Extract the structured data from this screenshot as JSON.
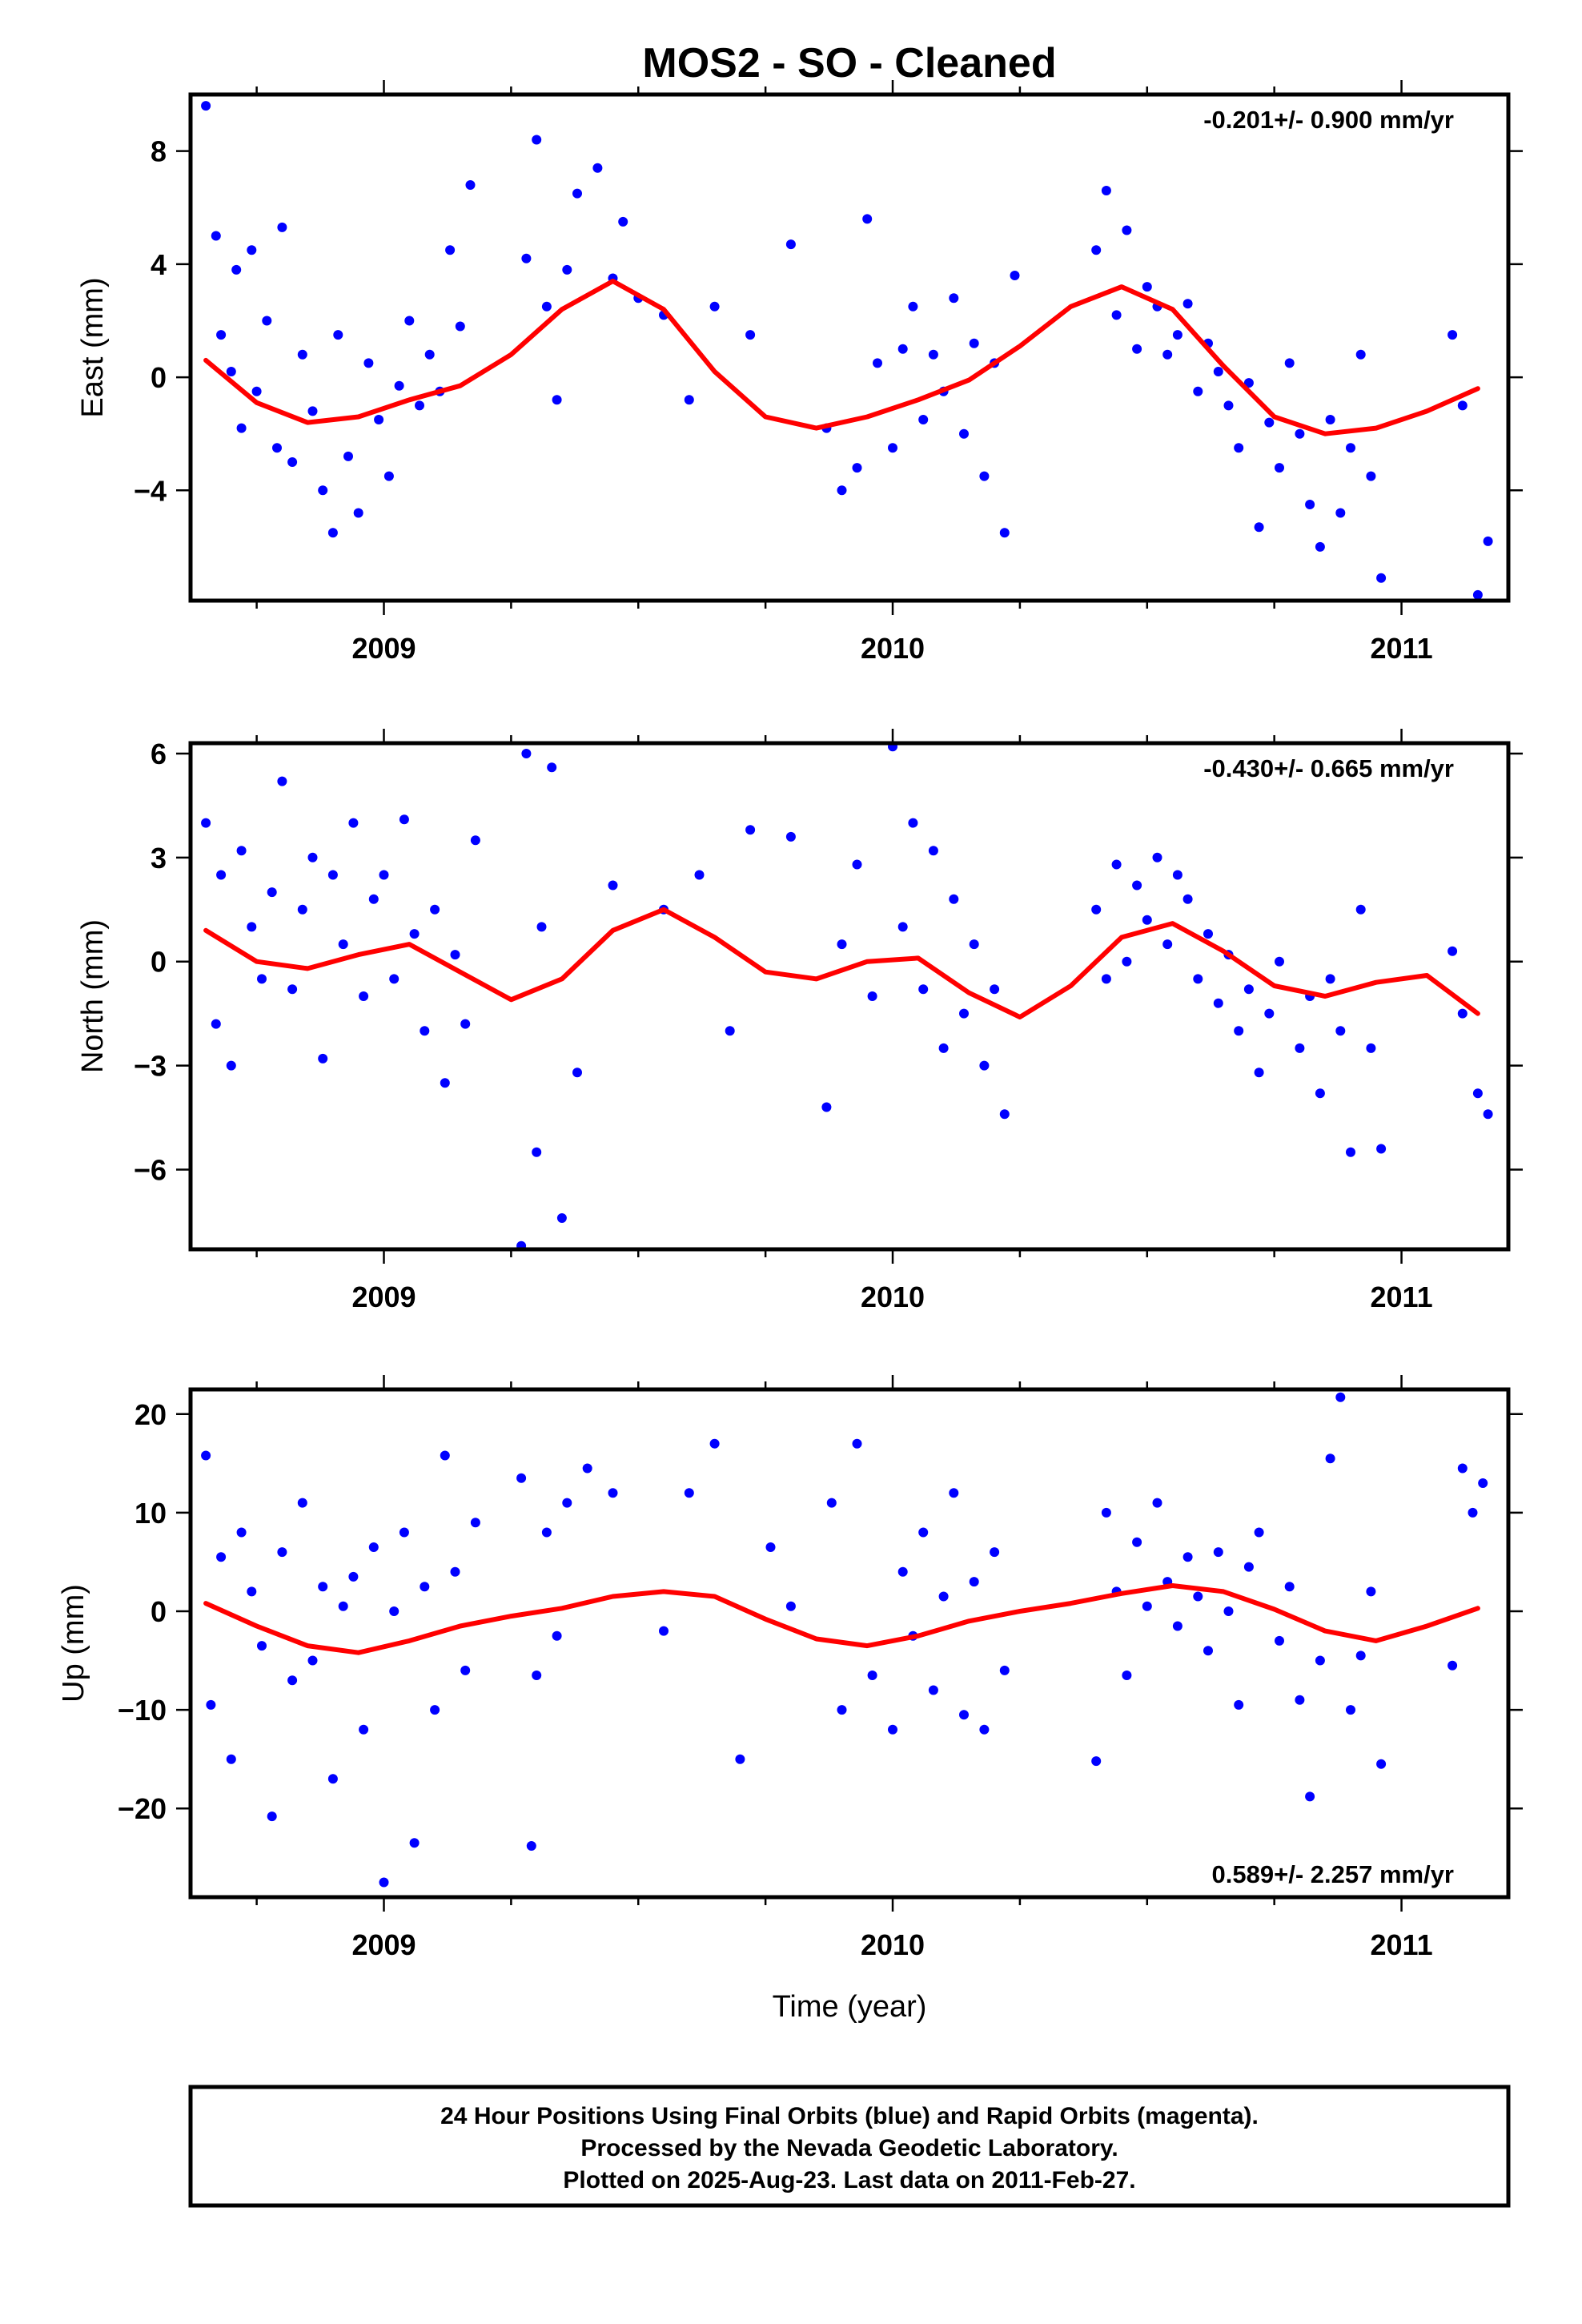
{
  "title": "MOS2  - SO - Cleaned",
  "xlabel": "Time (year)",
  "footer": {
    "line1": "24 Hour Positions Using Final Orbits (blue) and Rapid Orbits (magenta).",
    "line2": "Processed by the Nevada Geodetic Laboratory.",
    "line3": "Plotted on 2025-Aug-23. Last data on 2011-Feb-27."
  },
  "colors": {
    "points": "#0000ff",
    "fit": "#ff0000",
    "frame": "#000000"
  },
  "chart_data": [
    {
      "type": "scatter",
      "ylabel": "East (mm)",
      "rate": "-0.201+/- 0.900 mm/yr",
      "rate_position": "top-right",
      "xlim": [
        2008.62,
        2011.21
      ],
      "ylim": [
        -7.9,
        10.0
      ],
      "x_ticks": [
        2009,
        2010,
        2011
      ],
      "x_minor_ticks": [
        2008.75,
        2009.25,
        2009.5,
        2009.75,
        2010.25,
        2010.5,
        2010.75,
        2011.25
      ],
      "y_ticks": [
        -4,
        0,
        4,
        8
      ],
      "grid": false,
      "points": {
        "x": [
          2008.65,
          2008.67,
          2008.68,
          2008.7,
          2008.71,
          2008.72,
          2008.74,
          2008.75,
          2008.77,
          2008.79,
          2008.8,
          2008.82,
          2008.84,
          2008.86,
          2008.88,
          2008.9,
          2008.91,
          2008.93,
          2008.95,
          2008.97,
          2008.99,
          2009.01,
          2009.03,
          2009.05,
          2009.07,
          2009.09,
          2009.11,
          2009.13,
          2009.15,
          2009.17,
          2009.28,
          2009.3,
          2009.32,
          2009.34,
          2009.36,
          2009.38,
          2009.42,
          2009.45,
          2009.47,
          2009.5,
          2009.55,
          2009.6,
          2009.65,
          2009.72,
          2009.8,
          2009.87,
          2009.9,
          2009.93,
          2009.95,
          2009.97,
          2010.0,
          2010.02,
          2010.04,
          2010.06,
          2010.08,
          2010.1,
          2010.12,
          2010.14,
          2010.16,
          2010.18,
          2010.2,
          2010.22,
          2010.24,
          2010.4,
          2010.42,
          2010.44,
          2010.46,
          2010.48,
          2010.5,
          2010.52,
          2010.54,
          2010.56,
          2010.58,
          2010.6,
          2010.62,
          2010.64,
          2010.66,
          2010.68,
          2010.7,
          2010.72,
          2010.74,
          2010.76,
          2010.78,
          2010.8,
          2010.82,
          2010.84,
          2010.86,
          2010.88,
          2010.9,
          2010.92,
          2010.94,
          2010.96,
          2011.1,
          2011.12,
          2011.15,
          2011.17
        ],
        "y": [
          9.6,
          5.0,
          1.5,
          0.2,
          3.8,
          -1.8,
          4.5,
          -0.5,
          2.0,
          -2.5,
          5.3,
          -3.0,
          0.8,
          -1.2,
          -4.0,
          -5.5,
          1.5,
          -2.8,
          -4.8,
          0.5,
          -1.5,
          -3.5,
          -0.3,
          2.0,
          -1.0,
          0.8,
          -0.5,
          4.5,
          1.8,
          6.8,
          4.2,
          8.4,
          2.5,
          -0.8,
          3.8,
          6.5,
          7.4,
          3.5,
          5.5,
          2.8,
          2.2,
          -0.8,
          2.5,
          1.5,
          4.7,
          -1.8,
          -4.0,
          -3.2,
          5.6,
          0.5,
          -2.5,
          1.0,
          2.5,
          -1.5,
          0.8,
          -0.5,
          2.8,
          -2.0,
          1.2,
          -3.5,
          0.5,
          -5.5,
          3.6,
          4.5,
          6.6,
          2.2,
          5.2,
          1.0,
          3.2,
          2.5,
          0.8,
          1.5,
          2.6,
          -0.5,
          1.2,
          0.2,
          -1.0,
          -2.5,
          -0.2,
          -5.3,
          -1.6,
          -3.2,
          0.5,
          -2.0,
          -4.5,
          -6.0,
          -1.5,
          -4.8,
          -2.5,
          0.8,
          -3.5,
          -7.1,
          1.5,
          -1.0,
          -7.7,
          -5.8
        ]
      },
      "fit": {
        "x": [
          2008.65,
          2008.75,
          2008.85,
          2008.95,
          2009.05,
          2009.15,
          2009.25,
          2009.35,
          2009.45,
          2009.55,
          2009.65,
          2009.75,
          2009.85,
          2009.95,
          2010.05,
          2010.15,
          2010.25,
          2010.35,
          2010.45,
          2010.55,
          2010.65,
          2010.75,
          2010.85,
          2010.95,
          2011.05,
          2011.15
        ],
        "y": [
          0.6,
          -0.9,
          -1.6,
          -1.4,
          -0.8,
          -0.3,
          0.8,
          2.4,
          3.4,
          2.4,
          0.2,
          -1.4,
          -1.8,
          -1.4,
          -0.8,
          -0.1,
          1.1,
          2.5,
          3.2,
          2.4,
          0.4,
          -1.4,
          -2.0,
          -1.8,
          -1.2,
          -0.4
        ]
      }
    },
    {
      "type": "scatter",
      "ylabel": "North (mm)",
      "rate": "-0.430+/- 0.665 mm/yr",
      "rate_position": "top-right",
      "xlim": [
        2008.62,
        2011.21
      ],
      "ylim": [
        -8.3,
        6.3
      ],
      "x_ticks": [
        2009,
        2010,
        2011
      ],
      "x_minor_ticks": [
        2008.75,
        2009.25,
        2009.5,
        2009.75,
        2010.25,
        2010.5,
        2010.75,
        2011.25
      ],
      "y_ticks": [
        -6,
        -3,
        0,
        3,
        6
      ],
      "grid": false,
      "points": {
        "x": [
          2008.65,
          2008.67,
          2008.68,
          2008.7,
          2008.72,
          2008.74,
          2008.76,
          2008.78,
          2008.8,
          2008.82,
          2008.84,
          2008.86,
          2008.88,
          2008.9,
          2008.92,
          2008.94,
          2008.96,
          2008.98,
          2009.0,
          2009.02,
          2009.04,
          2009.06,
          2009.08,
          2009.1,
          2009.12,
          2009.14,
          2009.16,
          2009.18,
          2009.27,
          2009.28,
          2009.3,
          2009.31,
          2009.33,
          2009.35,
          2009.38,
          2009.45,
          2009.55,
          2009.62,
          2009.68,
          2009.72,
          2009.8,
          2009.87,
          2009.9,
          2009.93,
          2009.96,
          2010.0,
          2010.02,
          2010.04,
          2010.06,
          2010.08,
          2010.1,
          2010.12,
          2010.14,
          2010.16,
          2010.18,
          2010.2,
          2010.22,
          2010.4,
          2010.42,
          2010.44,
          2010.46,
          2010.48,
          2010.5,
          2010.52,
          2010.54,
          2010.56,
          2010.58,
          2010.6,
          2010.62,
          2010.64,
          2010.66,
          2010.68,
          2010.7,
          2010.72,
          2010.74,
          2010.76,
          2010.8,
          2010.82,
          2010.84,
          2010.86,
          2010.88,
          2010.9,
          2010.92,
          2010.94,
          2010.96,
          2011.1,
          2011.12,
          2011.15,
          2011.17
        ],
        "y": [
          4.0,
          -1.8,
          2.5,
          -3.0,
          3.2,
          1.0,
          -0.5,
          2.0,
          5.2,
          -0.8,
          1.5,
          3.0,
          -2.8,
          2.5,
          0.5,
          4.0,
          -1.0,
          1.8,
          2.5,
          -0.5,
          4.1,
          0.8,
          -2.0,
          1.5,
          -3.5,
          0.2,
          -1.8,
          3.5,
          -8.2,
          6.0,
          -5.5,
          1.0,
          5.6,
          -7.4,
          -3.2,
          2.2,
          1.5,
          2.5,
          -2.0,
          3.8,
          3.6,
          -4.2,
          0.5,
          2.8,
          -1.0,
          6.2,
          1.0,
          4.0,
          -0.8,
          3.2,
          -2.5,
          1.8,
          -1.5,
          0.5,
          -3.0,
          -0.8,
          -4.4,
          1.5,
          -0.5,
          2.8,
          0.0,
          2.2,
          1.2,
          3.0,
          0.5,
          2.5,
          1.8,
          -0.5,
          0.8,
          -1.2,
          0.2,
          -2.0,
          -0.8,
          -3.2,
          -1.5,
          0.0,
          -2.5,
          -1.0,
          -3.8,
          -0.5,
          -2.0,
          -5.5,
          1.5,
          -2.5,
          -5.4,
          0.3,
          -1.5,
          -3.8,
          -4.4
        ]
      },
      "fit": {
        "x": [
          2008.65,
          2008.75,
          2008.85,
          2008.95,
          2009.05,
          2009.15,
          2009.25,
          2009.35,
          2009.45,
          2009.55,
          2009.65,
          2009.75,
          2009.85,
          2009.95,
          2010.05,
          2010.15,
          2010.25,
          2010.35,
          2010.45,
          2010.55,
          2010.65,
          2010.75,
          2010.85,
          2010.95,
          2011.05,
          2011.15
        ],
        "y": [
          0.9,
          0.0,
          -0.2,
          0.2,
          0.5,
          -0.3,
          -1.1,
          -0.5,
          0.9,
          1.5,
          0.7,
          -0.3,
          -0.5,
          0.0,
          0.1,
          -0.9,
          -1.6,
          -0.7,
          0.7,
          1.1,
          0.3,
          -0.7,
          -1.0,
          -0.6,
          -0.4,
          -1.5
        ]
      }
    },
    {
      "type": "scatter",
      "ylabel": "Up (mm)",
      "rate": "0.589+/- 2.257 mm/yr",
      "rate_position": "bottom-right",
      "xlim": [
        2008.62,
        2011.21
      ],
      "ylim": [
        -29.0,
        22.5
      ],
      "x_ticks": [
        2009,
        2010,
        2011
      ],
      "x_minor_ticks": [
        2008.75,
        2009.25,
        2009.5,
        2009.75,
        2010.25,
        2010.5,
        2010.75,
        2011.25
      ],
      "y_ticks": [
        -20,
        -10,
        0,
        10,
        20
      ],
      "grid": false,
      "points": {
        "x": [
          2008.65,
          2008.66,
          2008.68,
          2008.7,
          2008.72,
          2008.74,
          2008.76,
          2008.78,
          2008.8,
          2008.82,
          2008.84,
          2008.86,
          2008.88,
          2008.9,
          2008.92,
          2008.94,
          2008.96,
          2008.98,
          2009.0,
          2009.02,
          2009.04,
          2009.06,
          2009.08,
          2009.1,
          2009.12,
          2009.14,
          2009.16,
          2009.18,
          2009.27,
          2009.29,
          2009.3,
          2009.32,
          2009.34,
          2009.36,
          2009.4,
          2009.45,
          2009.55,
          2009.6,
          2009.65,
          2009.7,
          2009.76,
          2009.8,
          2009.88,
          2009.9,
          2009.93,
          2009.96,
          2010.0,
          2010.02,
          2010.04,
          2010.06,
          2010.08,
          2010.1,
          2010.12,
          2010.14,
          2010.16,
          2010.18,
          2010.2,
          2010.22,
          2010.4,
          2010.42,
          2010.44,
          2010.46,
          2010.48,
          2010.5,
          2010.52,
          2010.54,
          2010.56,
          2010.58,
          2010.6,
          2010.62,
          2010.64,
          2010.66,
          2010.68,
          2010.7,
          2010.72,
          2010.76,
          2010.78,
          2010.8,
          2010.82,
          2010.84,
          2010.86,
          2010.88,
          2010.9,
          2010.92,
          2010.94,
          2010.96,
          2011.1,
          2011.12,
          2011.14,
          2011.16
        ],
        "y": [
          15.8,
          -9.5,
          5.5,
          -15.0,
          8.0,
          2.0,
          -3.5,
          -20.8,
          6.0,
          -7.0,
          11.0,
          -5.0,
          2.5,
          -17.0,
          0.5,
          3.5,
          -12.0,
          6.5,
          -27.5,
          0.0,
          8.0,
          -23.5,
          2.5,
          -10.0,
          15.8,
          4.0,
          -6.0,
          9.0,
          13.5,
          -23.8,
          -6.5,
          8.0,
          -2.5,
          11.0,
          14.5,
          12.0,
          -2.0,
          12.0,
          17.0,
          -15.0,
          6.5,
          0.5,
          11.0,
          -10.0,
          17.0,
          -6.5,
          -12.0,
          4.0,
          -2.5,
          8.0,
          -8.0,
          1.5,
          12.0,
          -10.5,
          3.0,
          -12.0,
          6.0,
          -6.0,
          -15.2,
          10.0,
          2.0,
          -6.5,
          7.0,
          0.5,
          11.0,
          3.0,
          -1.5,
          5.5,
          1.5,
          -4.0,
          6.0,
          0.0,
          -9.5,
          4.5,
          8.0,
          -3.0,
          2.5,
          -9.0,
          -18.8,
          -5.0,
          15.5,
          21.7,
          -10.0,
          -4.5,
          2.0,
          -15.5,
          -5.5,
          14.5,
          10.0,
          13.0
        ]
      },
      "fit": {
        "x": [
          2008.65,
          2008.75,
          2008.85,
          2008.95,
          2009.05,
          2009.15,
          2009.25,
          2009.35,
          2009.45,
          2009.55,
          2009.65,
          2009.75,
          2009.85,
          2009.95,
          2010.05,
          2010.15,
          2010.25,
          2010.35,
          2010.45,
          2010.55,
          2010.65,
          2010.75,
          2010.85,
          2010.95,
          2011.05,
          2011.15
        ],
        "y": [
          0.8,
          -1.5,
          -3.5,
          -4.2,
          -3.0,
          -1.5,
          -0.5,
          0.3,
          1.5,
          2.0,
          1.5,
          -0.8,
          -2.8,
          -3.5,
          -2.5,
          -1.0,
          0.0,
          0.8,
          1.8,
          2.6,
          2.0,
          0.2,
          -2.0,
          -3.0,
          -1.5,
          0.3
        ]
      }
    }
  ]
}
